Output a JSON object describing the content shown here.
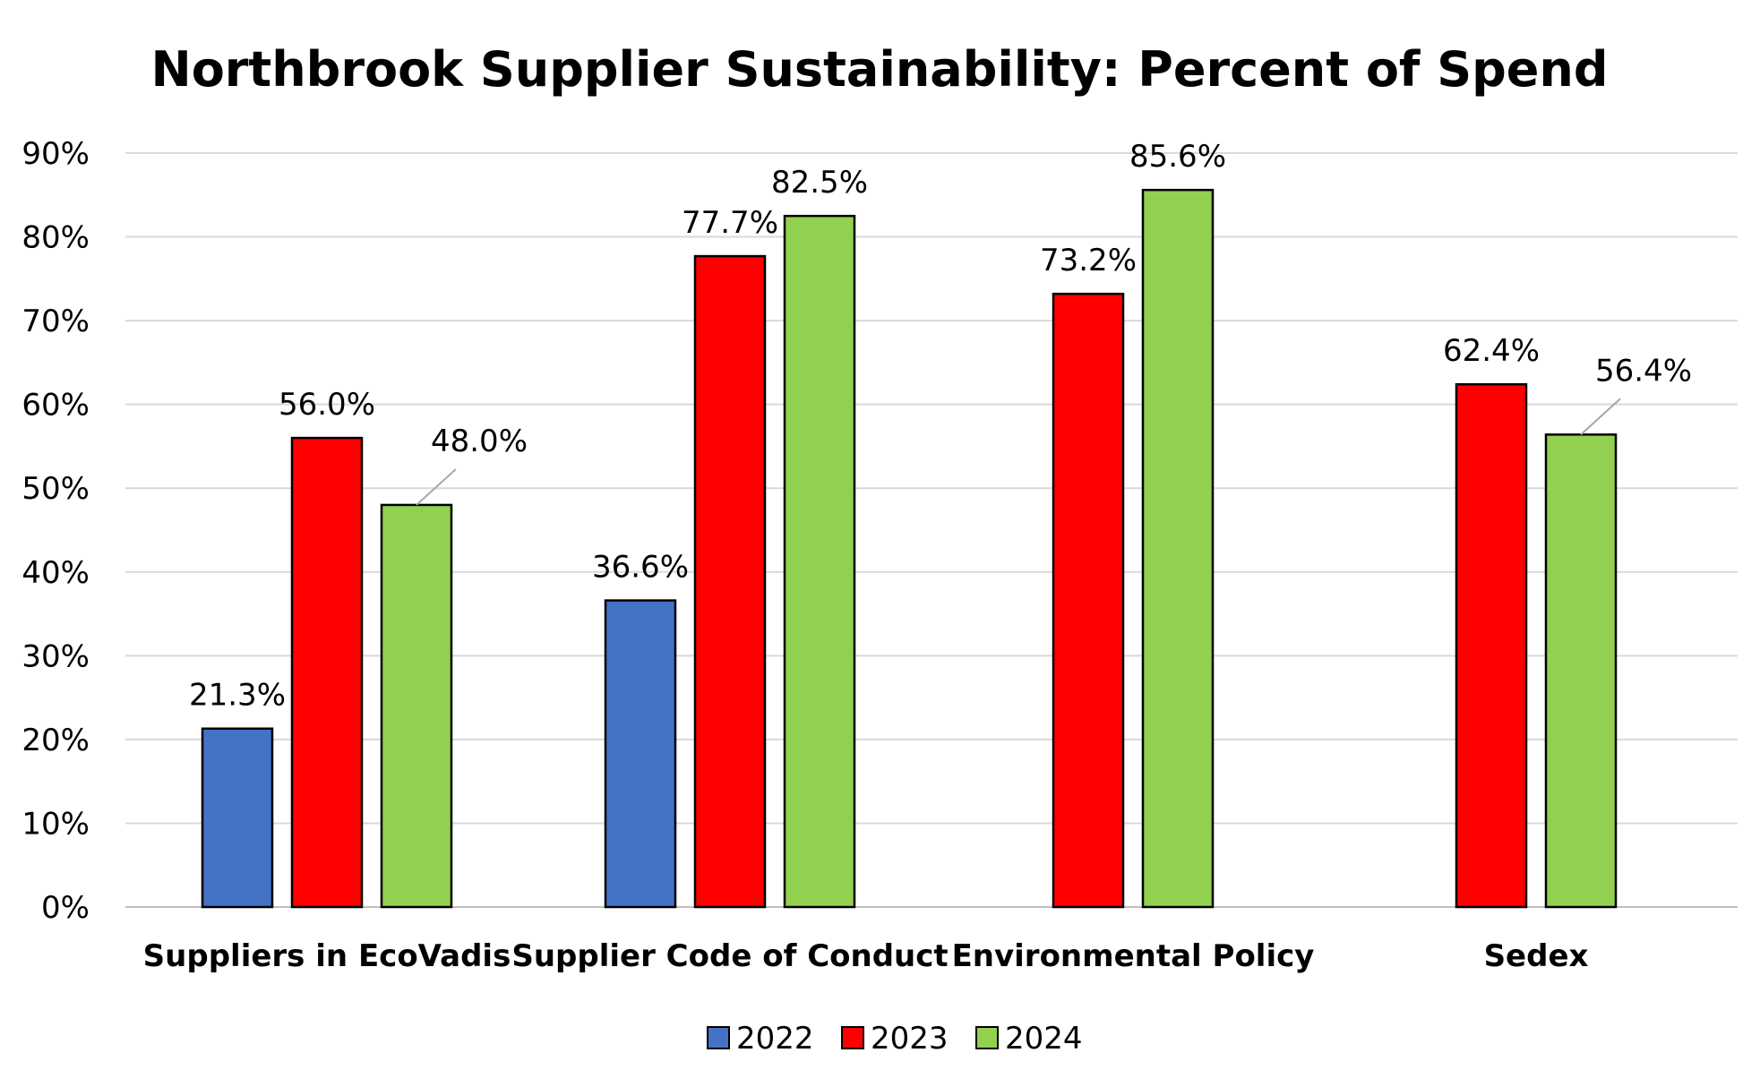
{
  "chart_data": {
    "type": "bar",
    "title": "Northbrook Supplier Sustainability: Percent of Spend",
    "xlabel": "",
    "ylabel": "",
    "ylim": [
      0,
      90
    ],
    "y_ticks": [
      "0%",
      "10%",
      "20%",
      "30%",
      "40%",
      "50%",
      "60%",
      "70%",
      "80%",
      "90%"
    ],
    "grid": true,
    "legend_position": "bottom",
    "categories": [
      "Suppliers in EcoVadis",
      "Supplier Code of Conduct",
      "Environmental Policy",
      "Sedex"
    ],
    "series": [
      {
        "name": "2022",
        "color": "#4472C4",
        "values": [
          21.3,
          36.6,
          null,
          null
        ],
        "labels": [
          "21.3%",
          "36.6%",
          null,
          null
        ]
      },
      {
        "name": "2023",
        "color": "#FF0000",
        "values": [
          56.0,
          77.7,
          73.2,
          62.4
        ],
        "labels": [
          "56.0%",
          "77.7%",
          "73.2%",
          "62.4%"
        ]
      },
      {
        "name": "2024",
        "color": "#92D050",
        "values": [
          48.0,
          82.5,
          85.6,
          56.4
        ],
        "labels": [
          "48.0%",
          "82.5%",
          "85.6%",
          "56.4%"
        ]
      }
    ]
  }
}
